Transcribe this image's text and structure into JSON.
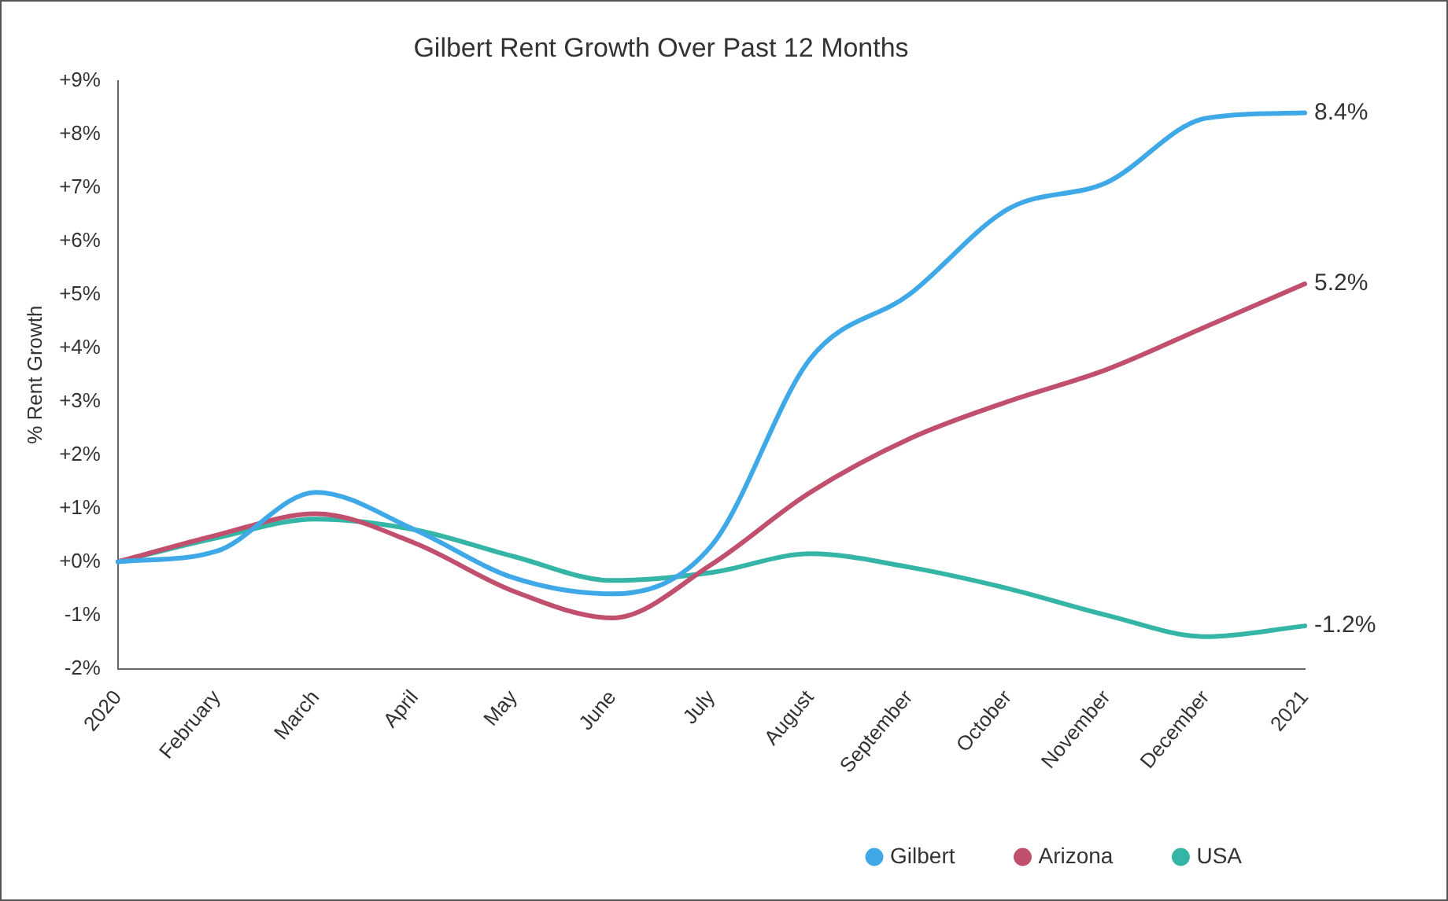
{
  "chart_data": {
    "type": "line",
    "title": "Gilbert Rent Growth Over Past 12 Months",
    "ylabel": "% Rent Growth",
    "categories": [
      "2020",
      "February",
      "March",
      "April",
      "May",
      "June",
      "July",
      "August",
      "September",
      "October",
      "November",
      "December",
      "2021"
    ],
    "series": [
      {
        "name": "Gilbert",
        "color": "#3fa9e8",
        "values": [
          0,
          0.2,
          1.3,
          0.6,
          -0.3,
          -0.6,
          0.3,
          3.8,
          5.0,
          6.6,
          7.1,
          8.3,
          8.4
        ]
      },
      {
        "name": "Arizona",
        "color": "#c0506e",
        "values": [
          0,
          0.5,
          0.9,
          0.35,
          -0.55,
          -1.05,
          -0.05,
          1.3,
          2.3,
          3.0,
          3.6,
          4.4,
          5.2
        ]
      },
      {
        "name": "USA",
        "color": "#35b5a5",
        "values": [
          0,
          0.45,
          0.8,
          0.6,
          0.1,
          -0.35,
          -0.2,
          0.15,
          -0.1,
          -0.5,
          -1.0,
          -1.4,
          -1.2
        ]
      }
    ],
    "ylim": [
      -2,
      9
    ],
    "yticks": [
      {
        "value": -2,
        "label": "-2%"
      },
      {
        "value": -1,
        "label": "-1%"
      },
      {
        "value": 0,
        "label": "+0%"
      },
      {
        "value": 1,
        "label": "+1%"
      },
      {
        "value": 2,
        "label": "+2%"
      },
      {
        "value": 3,
        "label": "+3%"
      },
      {
        "value": 4,
        "label": "+4%"
      },
      {
        "value": 5,
        "label": "+5%"
      },
      {
        "value": 6,
        "label": "+6%"
      },
      {
        "value": 7,
        "label": "+7%"
      },
      {
        "value": 8,
        "label": "+8%"
      },
      {
        "value": 9,
        "label": "+9%"
      }
    ],
    "annotations": [
      {
        "text": "8.4%",
        "x": "2021",
        "y": 8.4
      },
      {
        "text": "5.2%",
        "x": "2021",
        "y": 5.2
      },
      {
        "text": "-1.2%",
        "x": "2021",
        "y": -1.2
      }
    ],
    "grid": false,
    "legend": "bottom right",
    "marker": "none",
    "line_style": "solid"
  }
}
